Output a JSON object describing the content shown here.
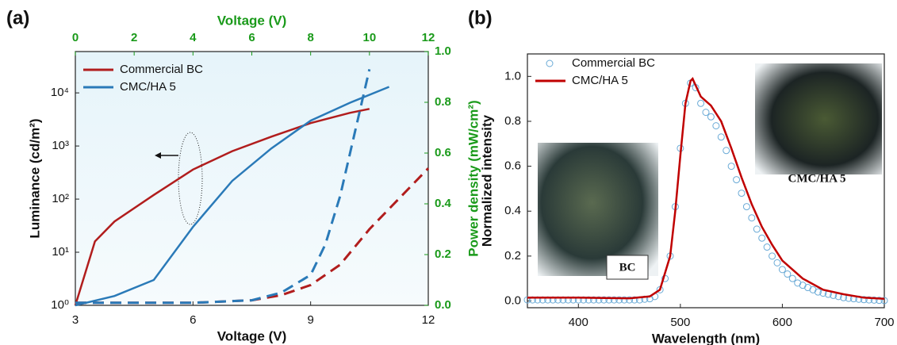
{
  "chart_data": [
    {
      "type": "line",
      "panel": "(a)",
      "x_label": "Voltage (V)",
      "x2_label": "Voltage (V)",
      "y_label": "Luminance (cd/m²)",
      "y2_label": "Power density (mW/cm²)",
      "xlim": [
        3,
        12
      ],
      "xticks": [
        3,
        6,
        9,
        12
      ],
      "x2lim": [
        0,
        12
      ],
      "x2ticks": [
        0,
        2,
        4,
        6,
        8,
        10,
        12
      ],
      "ylog": true,
      "ylim": [
        1,
        60000
      ],
      "yticks": [
        {
          "value": 1,
          "label": "10⁰"
        },
        {
          "value": 10,
          "label": "10¹"
        },
        {
          "value": 100,
          "label": "10²"
        },
        {
          "value": 1000,
          "label": "10³"
        },
        {
          "value": 10000,
          "label": "10⁴"
        }
      ],
      "y2lim": [
        0,
        1
      ],
      "y2ticks": [
        {
          "value": 0,
          "label": "0.0"
        },
        0.2,
        0.4,
        0.6,
        0.8,
        {
          "value": 1,
          "label": "1.0"
        }
      ],
      "secondary_color": "#1a9a1a",
      "series": [
        {
          "name": "Commercial BC",
          "color": "#b11d1d",
          "x": [
            3,
            3.5,
            4,
            5,
            6,
            7,
            8,
            9,
            10,
            10.5
          ],
          "values": [
            1,
            16,
            38,
            120,
            360,
            800,
            1500,
            2700,
            4200,
            5000
          ]
        },
        {
          "name": "CMC/HA 5",
          "color": "#2a7ab8",
          "x": [
            3,
            4,
            5,
            6,
            7,
            8,
            9,
            10,
            11
          ],
          "values": [
            1,
            1.5,
            3,
            30,
            220,
            900,
            3000,
            6500,
            13000
          ]
        },
        {
          "color": "#b11d1d",
          "dash": true,
          "axis": "y2",
          "xaxis": "x2",
          "x": [
            0,
            2,
            4,
            6,
            7,
            8,
            9,
            10,
            11,
            12
          ],
          "values": [
            0.01,
            0.01,
            0.01,
            0.02,
            0.04,
            0.08,
            0.16,
            0.3,
            0.42,
            0.54
          ]
        },
        {
          "color": "#2a7ab8",
          "dash": true,
          "axis": "y2",
          "xaxis": "x2",
          "x": [
            0,
            4,
            6,
            7,
            8,
            8.5,
            9,
            9.5,
            10
          ],
          "values": [
            0.01,
            0.01,
            0.02,
            0.05,
            0.12,
            0.24,
            0.43,
            0.68,
            0.93
          ]
        }
      ]
    },
    {
      "type": "line",
      "panel": "(b)",
      "x_label": "Wavelength (nm)",
      "y_label": "Normalized intensity",
      "xlim": [
        350,
        700
      ],
      "xticks": [
        400,
        500,
        600,
        700
      ],
      "ylim": [
        -0.03,
        1.1
      ],
      "yticks": [
        {
          "value": 0,
          "label": "0.0"
        },
        0.2,
        0.4,
        0.6,
        0.8,
        {
          "value": 1,
          "label": "1.0"
        }
      ],
      "annotations": [
        "BC",
        "CMC/HA 5"
      ],
      "series": [
        {
          "name": "Commercial BC",
          "color": "#6aaad6",
          "marker": "circle",
          "x": [
            350,
            355,
            360,
            365,
            370,
            375,
            380,
            385,
            390,
            395,
            400,
            405,
            410,
            415,
            420,
            425,
            430,
            435,
            440,
            445,
            450,
            455,
            460,
            465,
            470,
            475,
            480,
            485,
            490,
            495,
            500,
            505,
            510,
            515,
            520,
            525,
            530,
            535,
            540,
            545,
            550,
            555,
            560,
            565,
            570,
            575,
            580,
            585,
            590,
            595,
            600,
            605,
            610,
            615,
            620,
            625,
            630,
            635,
            640,
            645,
            650,
            655,
            660,
            665,
            670,
            675,
            680,
            685,
            690,
            695,
            700
          ],
          "values": [
            0.005,
            0.005,
            0.005,
            0.005,
            0.005,
            0.005,
            0.005,
            0.005,
            0.005,
            0.005,
            0.005,
            0.005,
            0.005,
            0.005,
            0.005,
            0.005,
            0.005,
            0.005,
            0.005,
            0.005,
            0.005,
            0.005,
            0.005,
            0.008,
            0.01,
            0.02,
            0.05,
            0.1,
            0.2,
            0.42,
            0.68,
            0.88,
            0.97,
            0.95,
            0.88,
            0.84,
            0.82,
            0.78,
            0.73,
            0.67,
            0.6,
            0.54,
            0.48,
            0.42,
            0.37,
            0.32,
            0.28,
            0.24,
            0.2,
            0.17,
            0.14,
            0.12,
            0.1,
            0.08,
            0.07,
            0.06,
            0.05,
            0.04,
            0.035,
            0.03,
            0.025,
            0.02,
            0.015,
            0.012,
            0.01,
            0.008,
            0.006,
            0.005,
            0.004,
            0.003,
            0.002
          ]
        },
        {
          "name": "CMC/HA 5",
          "color": "#c00000",
          "x": [
            350,
            400,
            450,
            470,
            480,
            490,
            495,
            500,
            505,
            510,
            512,
            515,
            520,
            530,
            540,
            550,
            560,
            570,
            580,
            590,
            600,
            620,
            640,
            660,
            680,
            700
          ],
          "values": [
            0.015,
            0.015,
            0.012,
            0.02,
            0.05,
            0.2,
            0.4,
            0.65,
            0.88,
            0.98,
            0.99,
            0.96,
            0.91,
            0.87,
            0.8,
            0.68,
            0.55,
            0.43,
            0.33,
            0.25,
            0.18,
            0.1,
            0.05,
            0.03,
            0.015,
            0.01
          ]
        }
      ]
    }
  ]
}
